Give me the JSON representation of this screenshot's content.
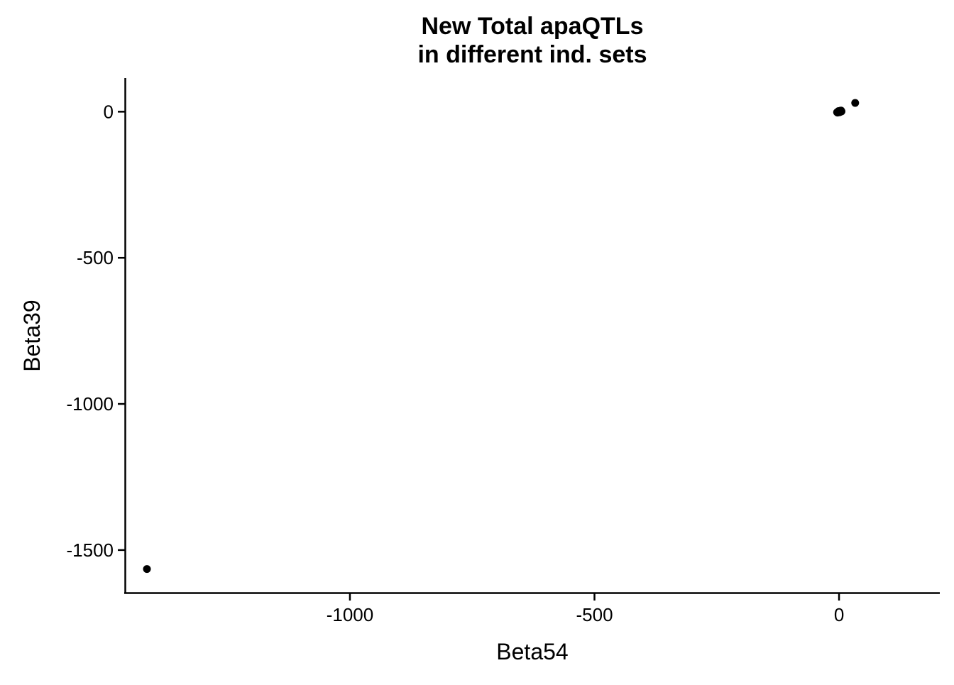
{
  "chart_data": {
    "type": "scatter",
    "title": [
      "New Total apaQTLs",
      "in different ind. sets"
    ],
    "xlabel": "Beta54",
    "ylabel": "Beta39",
    "xlim": [
      -1460,
      206
    ],
    "ylim": [
      -1646,
      115
    ],
    "x_ticks": [
      {
        "value": -1000,
        "label": "-1000"
      },
      {
        "value": -500,
        "label": "-500"
      },
      {
        "value": 0,
        "label": "0"
      }
    ],
    "y_ticks": [
      {
        "value": 0,
        "label": "0"
      },
      {
        "value": -500,
        "label": "-500"
      },
      {
        "value": -1000,
        "label": "-1000"
      },
      {
        "value": -1500,
        "label": "-1500"
      }
    ],
    "grid": false,
    "legend": "none",
    "point_color": "#000000",
    "points": [
      {
        "x": -1415,
        "y": -1565
      },
      {
        "x": 33,
        "y": 30
      },
      {
        "x": -3,
        "y": -3
      },
      {
        "x": -2,
        "y": 0
      },
      {
        "x": -1,
        "y": 2
      },
      {
        "x": 0,
        "y": -1
      },
      {
        "x": 1,
        "y": 1
      },
      {
        "x": 2,
        "y": 3
      },
      {
        "x": 3,
        "y": 2
      },
      {
        "x": 4,
        "y": 4
      },
      {
        "x": 5,
        "y": 1
      },
      {
        "x": -4,
        "y": -2
      },
      {
        "x": 1,
        "y": -2
      },
      {
        "x": 3,
        "y": 0
      }
    ]
  }
}
